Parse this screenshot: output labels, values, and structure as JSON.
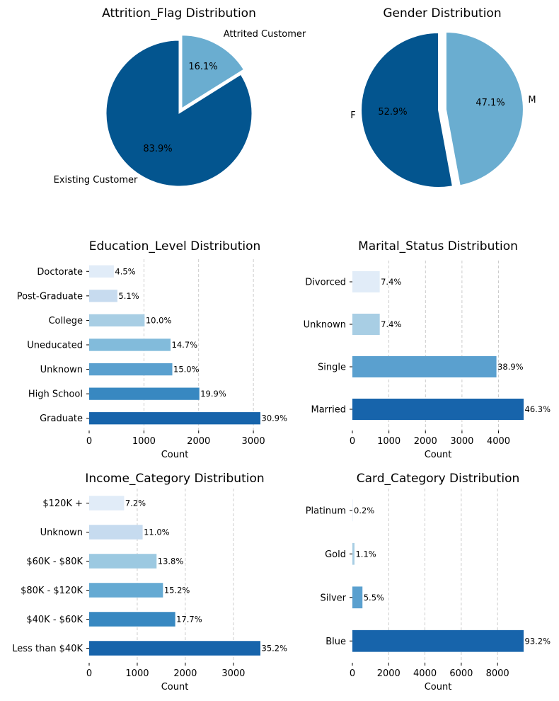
{
  "colors": {
    "pie_dark": "#03558f",
    "pie_light": "#6aadd0",
    "grid": "#b0b0b0"
  },
  "chart_data": [
    {
      "type": "pie",
      "title": "Attrition_Flag Distribution",
      "labels": [
        "Existing Customer",
        "Attrited Customer"
      ],
      "values": [
        83.9,
        16.1
      ],
      "value_labels": [
        "83.9%",
        "16.1%"
      ],
      "colors": [
        "#03558f",
        "#6aadd0"
      ],
      "explode": [
        0,
        0.08
      ]
    },
    {
      "type": "pie",
      "title": "Gender Distribution",
      "labels": [
        "F",
        "M"
      ],
      "values": [
        52.9,
        47.1
      ],
      "value_labels": [
        "52.9%",
        "47.1%"
      ],
      "colors": [
        "#03558f",
        "#6aadd0"
      ],
      "explode": [
        0.05,
        0.05
      ]
    },
    {
      "type": "bar",
      "orientation": "horizontal",
      "title": "Education_Level Distribution",
      "xlabel": "Count",
      "categories": [
        "Graduate",
        "High School",
        "Unknown",
        "Uneducated",
        "College",
        "Post-Graduate",
        "Doctorate"
      ],
      "values": [
        3128,
        2013,
        1519,
        1487,
        1013,
        516,
        451
      ],
      "value_labels": [
        "30.9%",
        "19.9%",
        "15.0%",
        "14.7%",
        "10.0%",
        "5.1%",
        "4.5%"
      ],
      "colors": [
        "#1764ab",
        "#3888c1",
        "#5aa0cf",
        "#82bbdb",
        "#a8cee4",
        "#c7dbef",
        "#e1ecf8"
      ],
      "xticks": [
        0,
        1000,
        2000,
        3000
      ],
      "tick_labels": [
        "0",
        "1000",
        "2000",
        "3000"
      ],
      "xlim": [
        0,
        3128
      ],
      "grid": "x"
    },
    {
      "type": "bar",
      "orientation": "horizontal",
      "title": "Marital_Status Distribution",
      "xlabel": "Count",
      "categories": [
        "Married",
        "Single",
        "Unknown",
        "Divorced"
      ],
      "values": [
        4687,
        3943,
        749,
        748
      ],
      "value_labels": [
        "46.3%",
        "38.9%",
        "7.4%",
        "7.4%"
      ],
      "colors": [
        "#1764ab",
        "#5aa0cf",
        "#a8cee4",
        "#e1ecf8"
      ],
      "xticks": [
        0,
        1000,
        2000,
        3000,
        4000
      ],
      "tick_labels": [
        "0",
        "1000",
        "2000",
        "3000",
        "4000"
      ],
      "xlim": [
        0,
        4687
      ],
      "grid": "x"
    },
    {
      "type": "bar",
      "orientation": "horizontal",
      "title": "Income_Category Distribution",
      "xlabel": "Count",
      "categories": [
        "Less than $40K",
        "$40K - $60K",
        "$80K - $120K",
        "$60K - $80K",
        "Unknown",
        "$120K +"
      ],
      "values": [
        3561,
        1790,
        1535,
        1402,
        1112,
        727
      ],
      "value_labels": [
        "35.2%",
        "17.7%",
        "15.2%",
        "13.8%",
        "11.0%",
        "7.2%"
      ],
      "colors": [
        "#1764ab",
        "#3888c1",
        "#65aad3",
        "#9cc9e1",
        "#c6dbef",
        "#e1ecf8"
      ],
      "xticks": [
        0,
        1000,
        2000,
        3000
      ],
      "tick_labels": [
        "0",
        "1000",
        "2000",
        "3000"
      ],
      "xlim": [
        0,
        3561
      ],
      "grid": "x"
    },
    {
      "type": "bar",
      "orientation": "horizontal",
      "title": "Card_Category Distribution",
      "xlabel": "Count",
      "categories": [
        "Blue",
        "Silver",
        "Gold",
        "Platinum"
      ],
      "values": [
        9436,
        555,
        116,
        20
      ],
      "value_labels": [
        "93.2%",
        "5.5%",
        "1.1%",
        "0.2%"
      ],
      "colors": [
        "#1764ab",
        "#5aa0cf",
        "#a8cee4",
        "#e1ecf8"
      ],
      "xticks": [
        0,
        2000,
        4000,
        6000,
        8000
      ],
      "tick_labels": [
        "0",
        "2000",
        "4000",
        "6000",
        "8000"
      ],
      "xlim": [
        0,
        9436
      ],
      "grid": "x"
    }
  ]
}
